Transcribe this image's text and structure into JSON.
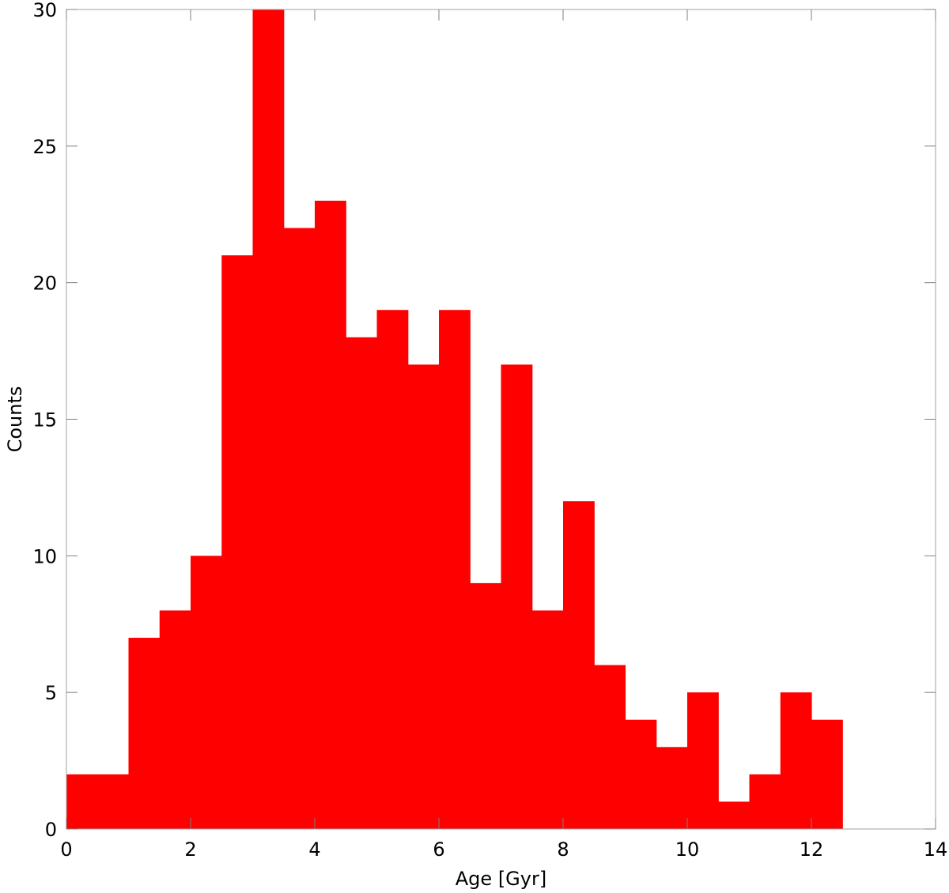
{
  "chart_data": {
    "type": "bar",
    "subtype": "histogram",
    "title": "",
    "xlabel": "Age [Gyr]",
    "ylabel": "Counts",
    "xlim": [
      0,
      14
    ],
    "ylim": [
      0,
      30
    ],
    "bin_width": 0.5,
    "bins": [
      {
        "x0": 0.0,
        "x1": 0.5,
        "count": 2
      },
      {
        "x0": 0.5,
        "x1": 1.0,
        "count": 2
      },
      {
        "x0": 1.0,
        "x1": 1.5,
        "count": 7
      },
      {
        "x0": 1.5,
        "x1": 2.0,
        "count": 8
      },
      {
        "x0": 2.0,
        "x1": 2.5,
        "count": 10
      },
      {
        "x0": 2.5,
        "x1": 3.0,
        "count": 21
      },
      {
        "x0": 3.0,
        "x1": 3.5,
        "count": 30
      },
      {
        "x0": 3.5,
        "x1": 4.0,
        "count": 22
      },
      {
        "x0": 4.0,
        "x1": 4.5,
        "count": 23
      },
      {
        "x0": 4.5,
        "x1": 5.0,
        "count": 18
      },
      {
        "x0": 5.0,
        "x1": 5.5,
        "count": 19
      },
      {
        "x0": 5.5,
        "x1": 6.0,
        "count": 17
      },
      {
        "x0": 6.0,
        "x1": 6.5,
        "count": 19
      },
      {
        "x0": 6.5,
        "x1": 7.0,
        "count": 9
      },
      {
        "x0": 7.0,
        "x1": 7.5,
        "count": 17
      },
      {
        "x0": 7.5,
        "x1": 8.0,
        "count": 8
      },
      {
        "x0": 8.0,
        "x1": 8.5,
        "count": 12
      },
      {
        "x0": 8.5,
        "x1": 9.0,
        "count": 6
      },
      {
        "x0": 9.0,
        "x1": 9.5,
        "count": 4
      },
      {
        "x0": 9.5,
        "x1": 10.0,
        "count": 3
      },
      {
        "x0": 10.0,
        "x1": 10.5,
        "count": 5
      },
      {
        "x0": 10.5,
        "x1": 11.0,
        "count": 1
      },
      {
        "x0": 11.0,
        "x1": 11.5,
        "count": 2
      },
      {
        "x0": 11.5,
        "x1": 12.0,
        "count": 5
      },
      {
        "x0": 12.0,
        "x1": 12.5,
        "count": 4
      },
      {
        "x0": 12.5,
        "x1": 13.0,
        "count": 0
      },
      {
        "x0": 13.0,
        "x1": 13.5,
        "count": 0
      },
      {
        "x0": 13.5,
        "x1": 14.0,
        "count": 0
      }
    ],
    "x_ticks": [
      "0",
      "2",
      "4",
      "6",
      "8",
      "10",
      "12",
      "14"
    ],
    "y_ticks": [
      "0",
      "5",
      "10",
      "15",
      "20",
      "25",
      "30"
    ],
    "bar_color": "#ff0000",
    "grid": false,
    "legend": "none"
  }
}
